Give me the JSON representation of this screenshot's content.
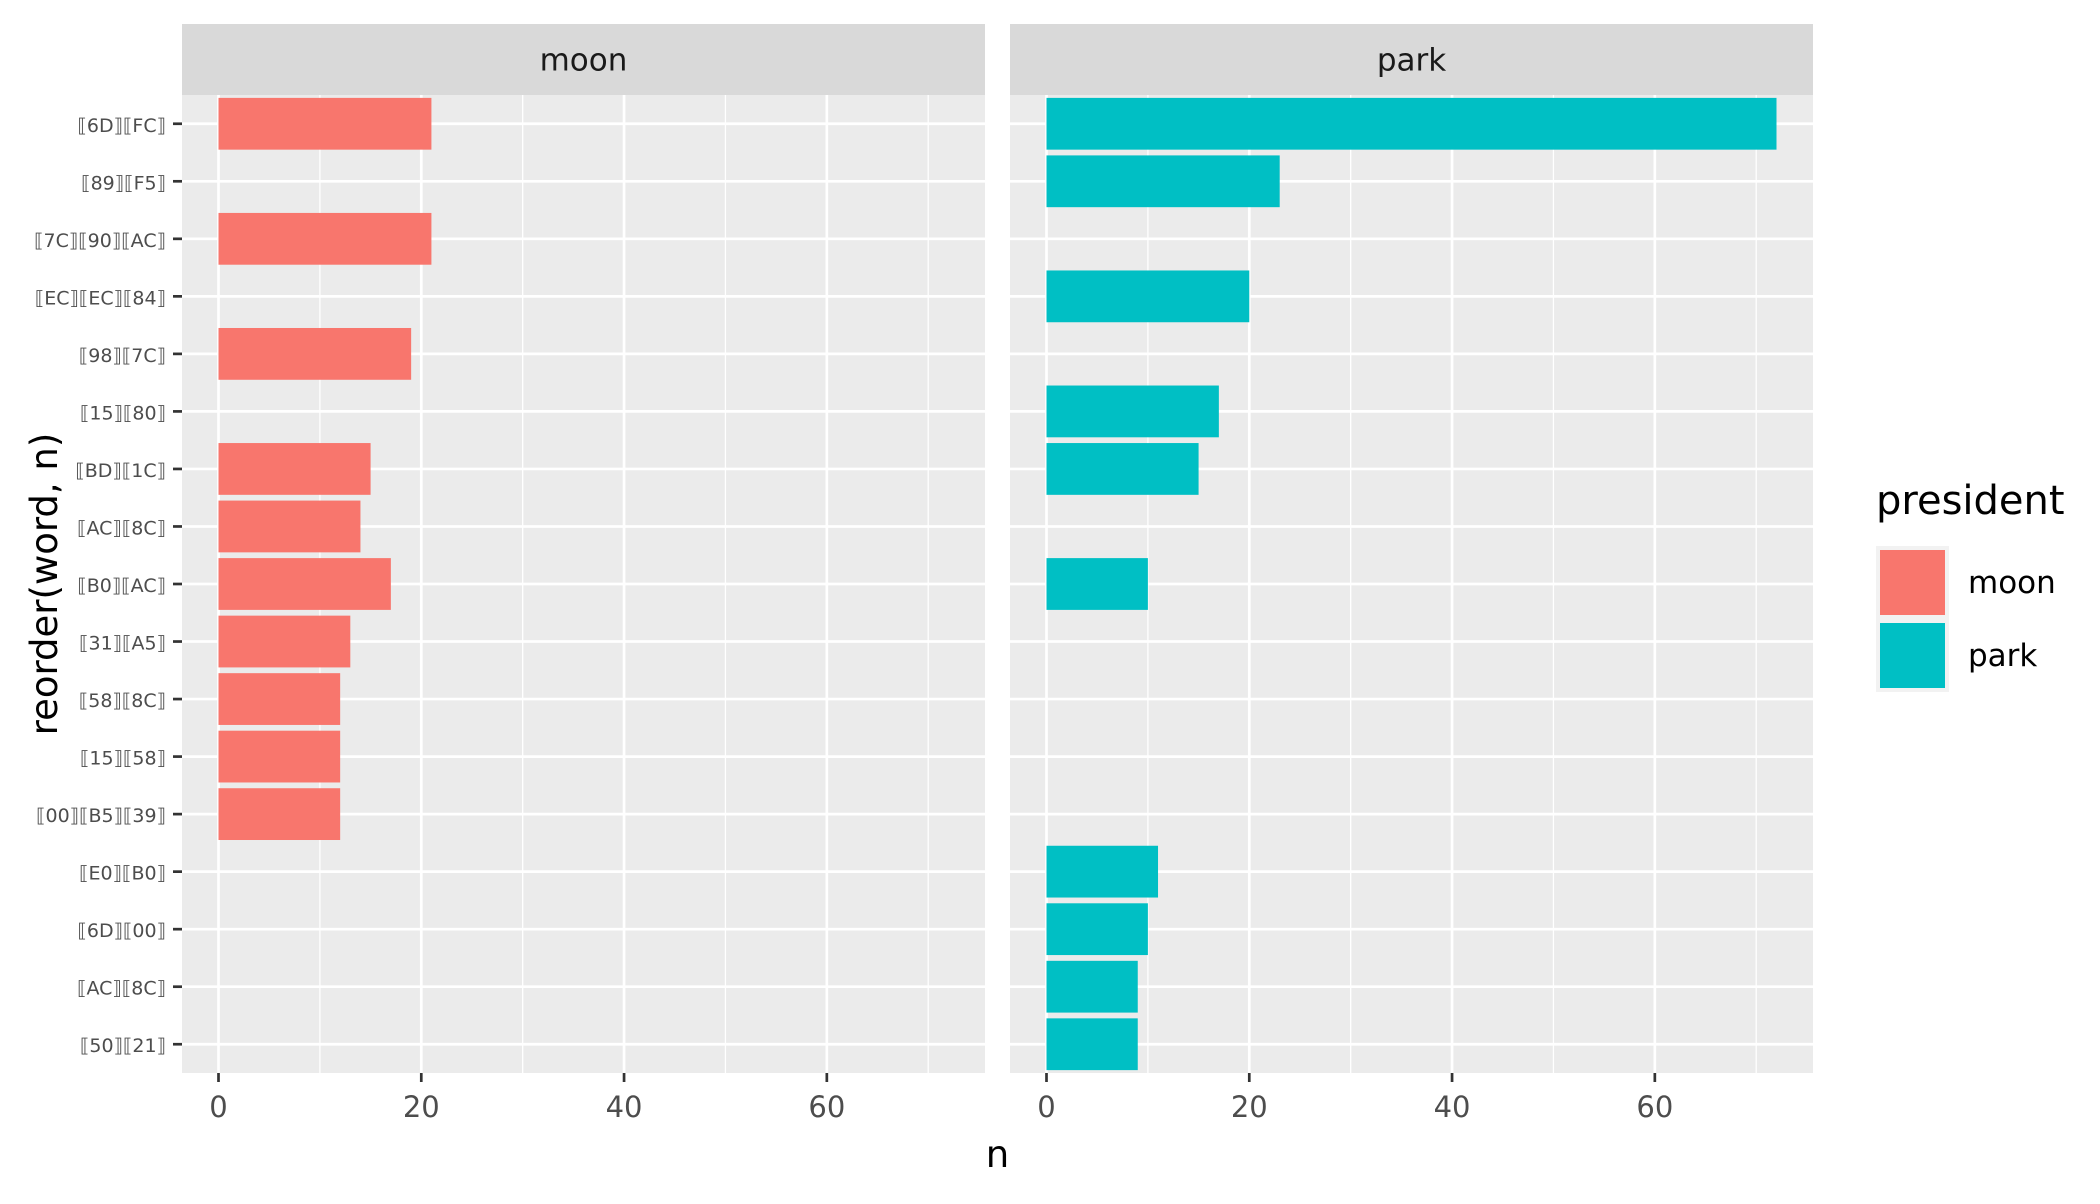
{
  "chart_data": {
    "type": "bar",
    "orientation": "horizontal",
    "facets": [
      "moon",
      "park"
    ],
    "categories": [
      "⟦6D⟧⟦FC⟧",
      "⟦89⟧⟦F5⟧",
      "⟦7C⟧⟦90⟧⟦AC⟧",
      "⟦EC⟧⟦EC⟧⟦84⟧",
      "⟦98⟧⟦7C⟧",
      "⟦15⟧⟦80⟧",
      "⟦BD⟧⟦1C⟧",
      "⟦AC⟧⟦8C⟧",
      "⟦B0⟧⟦AC⟧",
      "⟦31⟧⟦A5⟧",
      "⟦58⟧⟦8C⟧",
      "⟦15⟧⟦58⟧",
      "⟦00⟧⟦B5⟧⟦39⟧",
      "⟦E0⟧⟦B0⟧",
      "⟦6D⟧⟦00⟧",
      "⟦AC⟧⟦8C⟧",
      "⟦50⟧⟦21⟧"
    ],
    "series": [
      {
        "name": "moon",
        "color": "#F8766D",
        "values": [
          21,
          null,
          21,
          null,
          19,
          null,
          15,
          14,
          17,
          13,
          12,
          12,
          12,
          null,
          null,
          null,
          null
        ]
      },
      {
        "name": "park",
        "color": "#00BFC4",
        "values": [
          72,
          23,
          null,
          20,
          null,
          17,
          15,
          null,
          10,
          null,
          null,
          null,
          null,
          11,
          10,
          9,
          9
        ]
      }
    ],
    "xlabel": "n",
    "ylabel": "reorder(word, n)",
    "xlim": [
      -3.6,
      75.6
    ],
    "xticks": [
      0,
      20,
      40,
      60
    ],
    "grid": true,
    "legend": {
      "title": "president",
      "position": "right",
      "entries": [
        "moon",
        "park"
      ]
    }
  }
}
